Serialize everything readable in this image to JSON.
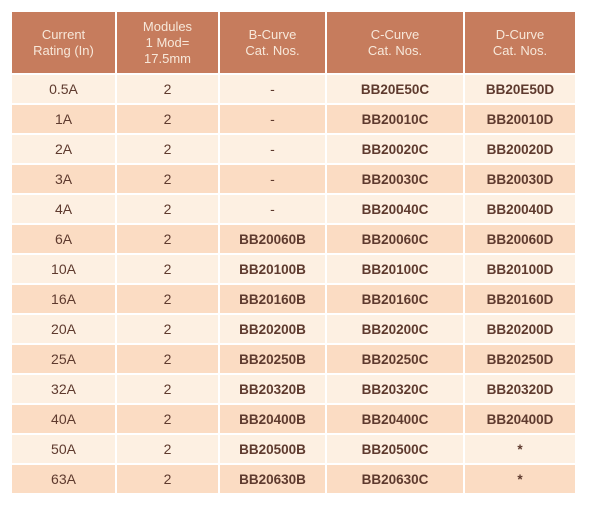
{
  "colors": {
    "header_bg": "#c67c5d",
    "header_text": "#f7e8da",
    "row_light": "#fdf0e2",
    "row_dark": "#fbdcc3",
    "body_text": "#5e3a2e",
    "page_bg": "#ffffff"
  },
  "table": {
    "columns": [
      {
        "id": "rating",
        "label": "Current\nRating (In)"
      },
      {
        "id": "modules",
        "label": "Modules\n1 Mod=\n17.5mm"
      },
      {
        "id": "b-curve",
        "label": "B-Curve\nCat. Nos."
      },
      {
        "id": "c-curve",
        "label": "C-Curve\nCat. Nos."
      },
      {
        "id": "d-curve",
        "label": "D-Curve\nCat. Nos."
      }
    ],
    "rows": [
      [
        "0.5A",
        "2",
        "-",
        "BB20E50C",
        "BB20E50D"
      ],
      [
        "1A",
        "2",
        "-",
        "BB20010C",
        "BB20010D"
      ],
      [
        "2A",
        "2",
        "-",
        "BB20020C",
        "BB20020D"
      ],
      [
        "3A",
        "2",
        "-",
        "BB20030C",
        "BB20030D"
      ],
      [
        "4A",
        "2",
        "-",
        "BB20040C",
        "BB20040D"
      ],
      [
        "6A",
        "2",
        "BB20060B",
        "BB20060C",
        "BB20060D"
      ],
      [
        "10A",
        "2",
        "BB20100B",
        "BB20100C",
        "BB20100D"
      ],
      [
        "16A",
        "2",
        "BB20160B",
        "BB20160C",
        "BB20160D"
      ],
      [
        "20A",
        "2",
        "BB20200B",
        "BB20200C",
        "BB20200D"
      ],
      [
        "25A",
        "2",
        "BB20250B",
        "BB20250C",
        "BB20250D"
      ],
      [
        "32A",
        "2",
        "BB20320B",
        "BB20320C",
        "BB20320D"
      ],
      [
        "40A",
        "2",
        "BB20400B",
        "BB20400C",
        "BB20400D"
      ],
      [
        "50A",
        "2",
        "BB20500B",
        "BB20500C",
        "*"
      ],
      [
        "63A",
        "2",
        "BB20630B",
        "BB20630C",
        "*"
      ]
    ]
  }
}
